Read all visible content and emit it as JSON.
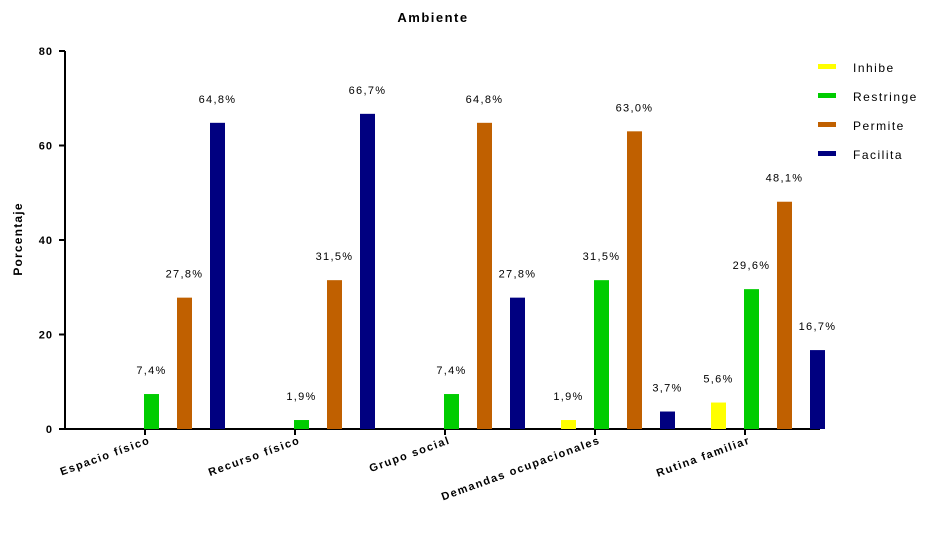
{
  "chart_data": {
    "type": "bar",
    "title": "Ambiente",
    "ylabel": "Porcentaje",
    "xlabel": "",
    "ylim": [
      0,
      80
    ],
    "yticks": [
      0,
      20,
      40,
      60,
      80
    ],
    "grid": false,
    "legend_position": "right",
    "categories": [
      "Espacio físico",
      "Recurso físico",
      "Grupo social",
      "Demandas ocupacionales",
      "Rutina familiar"
    ],
    "series": [
      {
        "name": "Inhibe",
        "color": "#ffff00",
        "values": [
          0,
          0,
          0,
          1.9,
          5.6
        ],
        "labels": [
          "",
          "",
          "",
          "1,9%",
          "5,6%"
        ]
      },
      {
        "name": "Restringe",
        "color": "#00cc00",
        "values": [
          7.4,
          1.9,
          7.4,
          31.5,
          29.6
        ],
        "labels": [
          "7,4%",
          "1,9%",
          "7,4%",
          "31,5%",
          "29,6%"
        ]
      },
      {
        "name": "Permite",
        "color": "#c06000",
        "values": [
          27.8,
          31.5,
          64.8,
          63.0,
          48.1
        ],
        "labels": [
          "27,8%",
          "31,5%",
          "64,8%",
          "63,0%",
          "48,1%"
        ]
      },
      {
        "name": "Facilita",
        "color": "#000080",
        "values": [
          64.8,
          66.7,
          27.8,
          3.7,
          16.7
        ],
        "labels": [
          "64,8%",
          "66,7%",
          "27,8%",
          "3,7%",
          "16,7%"
        ]
      }
    ]
  }
}
